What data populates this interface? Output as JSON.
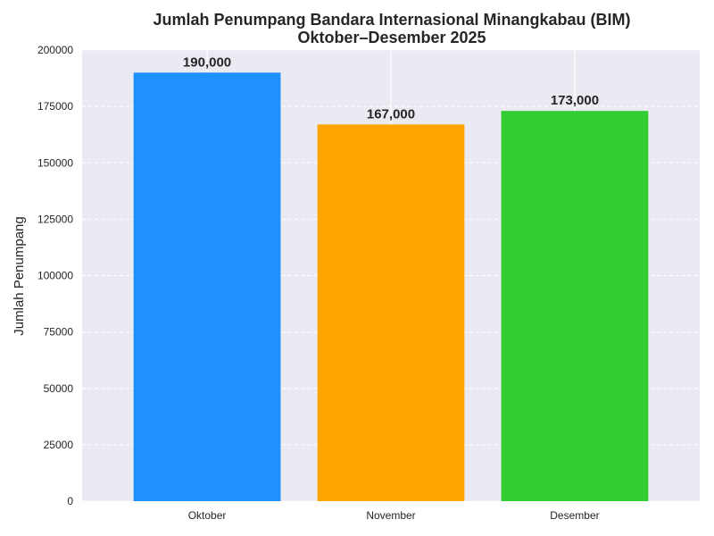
{
  "chart_data": {
    "type": "bar",
    "title_line1": "Jumlah Penumpang Bandara Internasional Minangkabau (BIM)",
    "title_line2": "Oktober–Desember 2025",
    "xlabel": "",
    "ylabel": "Jumlah Penumpang",
    "categories": [
      "Oktober",
      "November",
      "Desember"
    ],
    "values": [
      190000,
      167000,
      173000
    ],
    "value_labels": [
      "190,000",
      "167,000",
      "173,000"
    ],
    "colors": [
      "#1e90ff",
      "#ffa500",
      "#32cd32"
    ],
    "ylim": [
      0,
      200000
    ],
    "yticks": [
      0,
      25000,
      50000,
      75000,
      100000,
      125000,
      150000,
      175000,
      200000
    ],
    "ytick_labels": [
      "0",
      "25000",
      "50000",
      "75000",
      "100000",
      "125000",
      "150000",
      "175000",
      "200000"
    ],
    "grid": true,
    "background": "#eaeaf2"
  }
}
